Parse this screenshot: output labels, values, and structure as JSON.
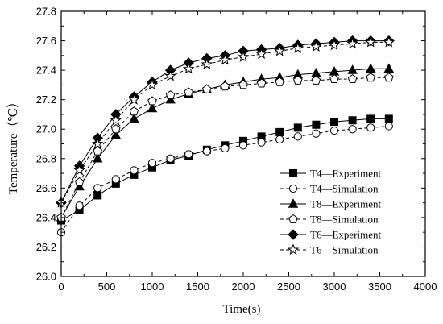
{
  "chart_data": {
    "type": "line",
    "title": "",
    "xlabel": "Time(s)",
    "ylabel": "Temperature（℃）",
    "xlim": [
      0,
      4000
    ],
    "ylim": [
      26.0,
      27.8
    ],
    "xticks": [
      0,
      500,
      1000,
      1500,
      2000,
      2500,
      3000,
      3500,
      4000
    ],
    "yticks": [
      26.0,
      26.2,
      26.4,
      26.6,
      26.8,
      27.0,
      27.2,
      27.4,
      27.6,
      27.8
    ],
    "xtick_labels": [
      "0",
      "500",
      "1000",
      "1500",
      "2000",
      "2500",
      "3000",
      "3500",
      "4000"
    ],
    "ytick_labels": [
      "26.0",
      "26.2",
      "26.4",
      "26.6",
      "26.8",
      "27.0",
      "27.2",
      "27.4",
      "27.6",
      "27.8"
    ],
    "grid": false,
    "legend_position": "bottom-right",
    "x": [
      0,
      200,
      400,
      600,
      800,
      1000,
      1200,
      1400,
      1600,
      1800,
      2000,
      2200,
      2400,
      2600,
      2800,
      3000,
      3200,
      3400,
      3600
    ],
    "series": [
      {
        "name": "T4—Experiment",
        "marker": "square-filled",
        "line": "solid",
        "values": [
          26.38,
          26.45,
          26.55,
          26.63,
          26.69,
          26.74,
          26.79,
          26.82,
          26.86,
          26.89,
          26.92,
          26.95,
          26.98,
          27.01,
          27.03,
          27.05,
          27.06,
          27.07,
          27.07
        ]
      },
      {
        "name": "T4—Simulation",
        "marker": "circle-open",
        "line": "dashed",
        "values": [
          26.3,
          26.48,
          26.6,
          26.66,
          26.72,
          26.77,
          26.8,
          26.83,
          26.85,
          26.87,
          26.89,
          26.91,
          26.93,
          26.95,
          26.97,
          26.99,
          27.0,
          27.01,
          27.02
        ]
      },
      {
        "name": "T8—Experiment",
        "marker": "triangle-filled",
        "line": "solid",
        "values": [
          26.4,
          26.61,
          26.8,
          26.96,
          27.07,
          27.14,
          27.2,
          27.24,
          27.27,
          27.3,
          27.32,
          27.34,
          27.35,
          27.37,
          27.38,
          27.39,
          27.4,
          27.41,
          27.41
        ]
      },
      {
        "name": "T8—Simulation",
        "marker": "pentagon-open",
        "line": "dashed",
        "values": [
          26.4,
          26.64,
          26.85,
          27.0,
          27.12,
          27.19,
          27.23,
          27.25,
          27.27,
          27.29,
          27.3,
          27.31,
          27.32,
          27.33,
          27.33,
          27.34,
          27.34,
          27.35,
          27.35
        ]
      },
      {
        "name": "T6—Experiment",
        "marker": "diamond-filled",
        "line": "solid",
        "values": [
          26.5,
          26.75,
          26.94,
          27.1,
          27.22,
          27.32,
          27.4,
          27.45,
          27.48,
          27.5,
          27.53,
          27.54,
          27.55,
          27.57,
          27.58,
          27.59,
          27.6,
          27.6,
          27.6
        ]
      },
      {
        "name": "T6—Simulation",
        "marker": "star-open",
        "line": "dashed",
        "values": [
          26.5,
          26.72,
          26.9,
          27.06,
          27.2,
          27.3,
          27.36,
          27.41,
          27.44,
          27.47,
          27.49,
          27.51,
          27.53,
          27.55,
          27.56,
          27.57,
          27.58,
          27.59,
          27.59
        ]
      }
    ]
  }
}
